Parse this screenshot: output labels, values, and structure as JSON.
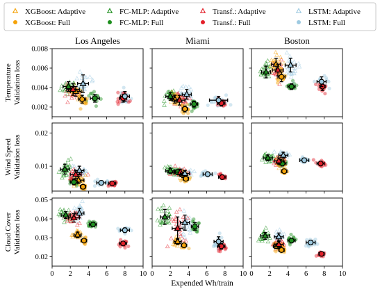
{
  "chart_data": {
    "type": "scatter",
    "xlabel": "Expended Wh/train",
    "xlim": [
      0,
      10
    ],
    "xticks": [
      "0",
      "2",
      "4",
      "6",
      "8",
      "10"
    ],
    "legend": {
      "position": "top",
      "entries": [
        {
          "name": "XGBoost: Adaptive",
          "marker": "triangle-open",
          "color": "#f5a30a"
        },
        {
          "name": "XGBoost: Full",
          "marker": "circle-filled",
          "color": "#f5a30a"
        },
        {
          "name": "FC-MLP: Adaptive",
          "marker": "triangle-open",
          "color": "#1e8f1e"
        },
        {
          "name": "FC-MLP: Full",
          "marker": "circle-filled",
          "color": "#1e8f1e"
        },
        {
          "name": "Transf.: Adaptive",
          "marker": "triangle-open",
          "color": "#e3202a"
        },
        {
          "name": "Transf.: Full",
          "marker": "circle-filled",
          "color": "#e3202a"
        },
        {
          "name": "LSTM: Adaptive",
          "marker": "triangle-open",
          "color": "#9ecae1"
        },
        {
          "name": "LSTM: Full",
          "marker": "circle-filled",
          "color": "#9ecae1"
        }
      ]
    },
    "columns": [
      "Los Angeles",
      "Miami",
      "Boston"
    ],
    "rows": [
      {
        "ylabel_lines": [
          "Temperature",
          "Validation loss"
        ],
        "ylim": [
          0.001,
          0.008
        ],
        "yticks": [
          "0.002",
          "0.004",
          "0.006",
          "0.008"
        ],
        "ytick_values": [
          0.002,
          0.004,
          0.006,
          0.008
        ]
      },
      {
        "ylabel_lines": [
          "Wind Speed",
          "Validation loss"
        ],
        "ylim": [
          0.0025,
          0.023
        ],
        "yticks": [
          "0.01",
          "0.02"
        ],
        "ytick_values": [
          0.01,
          0.02
        ]
      },
      {
        "ylabel_lines": [
          "Cloud Cover",
          "Validation loss"
        ],
        "ylim": [
          0.015,
          0.051
        ],
        "yticks": [
          "0.02",
          "0.03",
          "0.04",
          "0.05"
        ],
        "ytick_values": [
          0.02,
          0.03,
          0.04,
          0.05
        ]
      }
    ],
    "panels": [
      {
        "row": 0,
        "col": 0,
        "points": [
          {
            "model": "XGBoost",
            "mode": "Adaptive",
            "x": 2.6,
            "y": 0.0036,
            "xerr": 0.6,
            "yerr": 0.0005
          },
          {
            "model": "XGBoost",
            "mode": "Full",
            "x": 3.3,
            "y": 0.0028,
            "xerr": 0.4,
            "yerr": 0.0004
          },
          {
            "model": "FC-MLP",
            "mode": "Adaptive",
            "x": 1.8,
            "y": 0.0041,
            "xerr": 0.6,
            "yerr": 0.0005
          },
          {
            "model": "FC-MLP",
            "mode": "Full",
            "x": 4.7,
            "y": 0.0029,
            "xerr": 0.5,
            "yerr": 0.0004
          },
          {
            "model": "Transf.",
            "mode": "Adaptive",
            "x": 2.3,
            "y": 0.0038,
            "xerr": 0.7,
            "yerr": 0.0006
          },
          {
            "model": "Transf.",
            "mode": "Full",
            "x": 7.8,
            "y": 0.0029,
            "xerr": 0.4,
            "yerr": 0.0004
          },
          {
            "model": "LSTM",
            "mode": "Adaptive",
            "x": 3.4,
            "y": 0.0044,
            "xerr": 0.6,
            "yerr": 0.0009
          },
          {
            "model": "LSTM",
            "mode": "Full",
            "x": 8.0,
            "y": 0.0031,
            "xerr": 0.5,
            "yerr": 0.0005
          }
        ]
      },
      {
        "row": 0,
        "col": 1,
        "points": [
          {
            "model": "XGBoost",
            "mode": "Adaptive",
            "x": 2.5,
            "y": 0.0028,
            "xerr": 0.4,
            "yerr": 0.0004
          },
          {
            "model": "XGBoost",
            "mode": "Full",
            "x": 3.6,
            "y": 0.0018,
            "xerr": 0.3,
            "yerr": 0.0003
          },
          {
            "model": "FC-MLP",
            "mode": "Adaptive",
            "x": 2.0,
            "y": 0.0031,
            "xerr": 0.5,
            "yerr": 0.0004
          },
          {
            "model": "FC-MLP",
            "mode": "Full",
            "x": 4.6,
            "y": 0.0023,
            "xerr": 0.4,
            "yerr": 0.0003
          },
          {
            "model": "Transf.",
            "mode": "Adaptive",
            "x": 3.0,
            "y": 0.0027,
            "xerr": 0.6,
            "yerr": 0.0005
          },
          {
            "model": "Transf.",
            "mode": "Full",
            "x": 7.6,
            "y": 0.0024,
            "xerr": 0.4,
            "yerr": 0.0003
          },
          {
            "model": "LSTM",
            "mode": "Adaptive",
            "x": 3.8,
            "y": 0.0033,
            "xerr": 0.5,
            "yerr": 0.0005
          },
          {
            "model": "LSTM",
            "mode": "Full",
            "x": 7.3,
            "y": 0.0027,
            "xerr": 1.0,
            "yerr": 0.0004
          }
        ]
      },
      {
        "row": 0,
        "col": 2,
        "points": [
          {
            "model": "XGBoost",
            "mode": "Adaptive",
            "x": 2.7,
            "y": 0.0064,
            "xerr": 0.5,
            "yerr": 0.0006
          },
          {
            "model": "XGBoost",
            "mode": "Full",
            "x": 3.3,
            "y": 0.0051,
            "xerr": 0.4,
            "yerr": 0.0005
          },
          {
            "model": "FC-MLP",
            "mode": "Adaptive",
            "x": 1.6,
            "y": 0.0056,
            "xerr": 0.5,
            "yerr": 0.0006
          },
          {
            "model": "FC-MLP",
            "mode": "Full",
            "x": 4.4,
            "y": 0.0041,
            "xerr": 0.4,
            "yerr": 0.0003
          },
          {
            "model": "Transf.",
            "mode": "Adaptive",
            "x": 2.9,
            "y": 0.0058,
            "xerr": 0.6,
            "yerr": 0.0006
          },
          {
            "model": "Transf.",
            "mode": "Full",
            "x": 7.8,
            "y": 0.0041,
            "xerr": 0.3,
            "yerr": 0.0004
          },
          {
            "model": "LSTM",
            "mode": "Adaptive",
            "x": 4.3,
            "y": 0.0063,
            "xerr": 0.6,
            "yerr": 0.0007
          },
          {
            "model": "LSTM",
            "mode": "Full",
            "x": 7.7,
            "y": 0.0046,
            "xerr": 0.5,
            "yerr": 0.0005
          }
        ]
      },
      {
        "row": 1,
        "col": 0,
        "points": [
          {
            "model": "XGBoost",
            "mode": "Adaptive",
            "x": 2.9,
            "y": 0.0058,
            "xerr": 0.6,
            "yerr": 0.001
          },
          {
            "model": "XGBoost",
            "mode": "Full",
            "x": 3.4,
            "y": 0.0038,
            "xerr": 0.3,
            "yerr": 0.0006
          },
          {
            "model": "FC-MLP",
            "mode": "Adaptive",
            "x": 1.4,
            "y": 0.0091,
            "xerr": 0.5,
            "yerr": 0.0015
          },
          {
            "model": "FC-MLP",
            "mode": "Full",
            "x": 2.4,
            "y": 0.0052,
            "xerr": 0.4,
            "yerr": 0.0008
          },
          {
            "model": "Transf.",
            "mode": "Adaptive",
            "x": 2.6,
            "y": 0.0075,
            "xerr": 0.6,
            "yerr": 0.0012
          },
          {
            "model": "Transf.",
            "mode": "Full",
            "x": 6.6,
            "y": 0.0048,
            "xerr": 0.4,
            "yerr": 0.0005
          },
          {
            "model": "LSTM",
            "mode": "Adaptive",
            "x": 3.0,
            "y": 0.0087,
            "xerr": 0.5,
            "yerr": 0.0013
          },
          {
            "model": "LSTM",
            "mode": "Full",
            "x": 5.4,
            "y": 0.005,
            "xerr": 0.5,
            "yerr": 0.0006
          }
        ]
      },
      {
        "row": 1,
        "col": 1,
        "points": [
          {
            "model": "XGBoost",
            "mode": "Adaptive",
            "x": 3.4,
            "y": 0.0074,
            "xerr": 0.4,
            "yerr": 0.0008
          },
          {
            "model": "XGBoost",
            "mode": "Full",
            "x": 3.7,
            "y": 0.0062,
            "xerr": 0.3,
            "yerr": 0.0006
          },
          {
            "model": "FC-MLP",
            "mode": "Adaptive",
            "x": 2.0,
            "y": 0.0086,
            "xerr": 0.5,
            "yerr": 0.0008
          },
          {
            "model": "FC-MLP",
            "mode": "Full",
            "x": 2.8,
            "y": 0.0082,
            "xerr": 0.4,
            "yerr": 0.0007
          },
          {
            "model": "Transf.",
            "mode": "Adaptive",
            "x": 3.1,
            "y": 0.0082,
            "xerr": 0.6,
            "yerr": 0.0009
          },
          {
            "model": "Transf.",
            "mode": "Full",
            "x": 7.7,
            "y": 0.0067,
            "xerr": 0.4,
            "yerr": 0.0006
          },
          {
            "model": "LSTM",
            "mode": "Adaptive",
            "x": 3.6,
            "y": 0.0078,
            "xerr": 0.5,
            "yerr": 0.0009
          },
          {
            "model": "LSTM",
            "mode": "Full",
            "x": 6.1,
            "y": 0.0076,
            "xerr": 0.5,
            "yerr": 0.0006
          }
        ]
      },
      {
        "row": 1,
        "col": 2,
        "points": [
          {
            "model": "XGBoost",
            "mode": "Adaptive",
            "x": 3.2,
            "y": 0.0112,
            "xerr": 0.4,
            "yerr": 0.0008
          },
          {
            "model": "XGBoost",
            "mode": "Full",
            "x": 3.6,
            "y": 0.0085,
            "xerr": 0.3,
            "yerr": 0.0005
          },
          {
            "model": "FC-MLP",
            "mode": "Adaptive",
            "x": 1.8,
            "y": 0.0125,
            "xerr": 0.5,
            "yerr": 0.0009
          },
          {
            "model": "FC-MLP",
            "mode": "Full",
            "x": 3.4,
            "y": 0.0108,
            "xerr": 0.4,
            "yerr": 0.0007
          },
          {
            "model": "Transf.",
            "mode": "Adaptive",
            "x": 3.0,
            "y": 0.0116,
            "xerr": 0.5,
            "yerr": 0.0009
          },
          {
            "model": "Transf.",
            "mode": "Full",
            "x": 7.6,
            "y": 0.0108,
            "xerr": 0.4,
            "yerr": 0.0006
          },
          {
            "model": "LSTM",
            "mode": "Adaptive",
            "x": 3.5,
            "y": 0.0133,
            "xerr": 0.5,
            "yerr": 0.0009
          },
          {
            "model": "LSTM",
            "mode": "Full",
            "x": 5.8,
            "y": 0.0118,
            "xerr": 0.5,
            "yerr": 0.0006
          }
        ]
      },
      {
        "row": 2,
        "col": 0,
        "points": [
          {
            "model": "XGBoost",
            "mode": "Adaptive",
            "x": 2.8,
            "y": 0.0315,
            "xerr": 0.4,
            "yerr": 0.0015
          },
          {
            "model": "XGBoost",
            "mode": "Full",
            "x": 3.5,
            "y": 0.0285,
            "xerr": 0.3,
            "yerr": 0.001
          },
          {
            "model": "FC-MLP",
            "mode": "Adaptive",
            "x": 1.5,
            "y": 0.042,
            "xerr": 0.5,
            "yerr": 0.0018
          },
          {
            "model": "FC-MLP",
            "mode": "Full",
            "x": 4.5,
            "y": 0.037,
            "xerr": 0.4,
            "yerr": 0.0012
          },
          {
            "model": "Transf.",
            "mode": "Adaptive",
            "x": 2.4,
            "y": 0.0405,
            "xerr": 0.6,
            "yerr": 0.0022
          },
          {
            "model": "Transf.",
            "mode": "Full",
            "x": 7.8,
            "y": 0.027,
            "xerr": 0.4,
            "yerr": 0.001
          },
          {
            "model": "LSTM",
            "mode": "Adaptive",
            "x": 3.0,
            "y": 0.043,
            "xerr": 0.5,
            "yerr": 0.0025
          },
          {
            "model": "LSTM",
            "mode": "Full",
            "x": 8.0,
            "y": 0.034,
            "xerr": 0.5,
            "yerr": 0.0012
          }
        ]
      },
      {
        "row": 2,
        "col": 1,
        "points": [
          {
            "model": "XGBoost",
            "mode": "Adaptive",
            "x": 2.8,
            "y": 0.028,
            "xerr": 0.4,
            "yerr": 0.0015
          },
          {
            "model": "XGBoost",
            "mode": "Full",
            "x": 3.5,
            "y": 0.026,
            "xerr": 0.3,
            "yerr": 0.001
          },
          {
            "model": "FC-MLP",
            "mode": "Adaptive",
            "x": 1.4,
            "y": 0.041,
            "xerr": 0.5,
            "yerr": 0.004
          },
          {
            "model": "FC-MLP",
            "mode": "Full",
            "x": 4.7,
            "y": 0.036,
            "xerr": 0.4,
            "yerr": 0.002
          },
          {
            "model": "Transf.",
            "mode": "Adaptive",
            "x": 2.8,
            "y": 0.035,
            "xerr": 0.6,
            "yerr": 0.006
          },
          {
            "model": "Transf.",
            "mode": "Full",
            "x": 7.6,
            "y": 0.0255,
            "xerr": 0.4,
            "yerr": 0.0015
          },
          {
            "model": "LSTM",
            "mode": "Adaptive",
            "x": 3.6,
            "y": 0.038,
            "xerr": 0.5,
            "yerr": 0.004
          },
          {
            "model": "LSTM",
            "mode": "Full",
            "x": 7.3,
            "y": 0.028,
            "xerr": 0.5,
            "yerr": 0.0025
          }
        ]
      },
      {
        "row": 2,
        "col": 2,
        "points": [
          {
            "model": "XGBoost",
            "mode": "Adaptive",
            "x": 2.8,
            "y": 0.0255,
            "xerr": 0.4,
            "yerr": 0.0012
          },
          {
            "model": "XGBoost",
            "mode": "Full",
            "x": 3.3,
            "y": 0.0235,
            "xerr": 0.3,
            "yerr": 0.001
          },
          {
            "model": "FC-MLP",
            "mode": "Adaptive",
            "x": 1.5,
            "y": 0.031,
            "xerr": 0.5,
            "yerr": 0.0018
          },
          {
            "model": "FC-MLP",
            "mode": "Full",
            "x": 4.4,
            "y": 0.0285,
            "xerr": 0.4,
            "yerr": 0.0012
          },
          {
            "model": "Transf.",
            "mode": "Adaptive",
            "x": 3.0,
            "y": 0.0265,
            "xerr": 0.5,
            "yerr": 0.0015
          },
          {
            "model": "Transf.",
            "mode": "Full",
            "x": 7.7,
            "y": 0.0215,
            "xerr": 0.3,
            "yerr": 0.001
          },
          {
            "model": "LSTM",
            "mode": "Adaptive",
            "x": 3.0,
            "y": 0.0305,
            "xerr": 0.5,
            "yerr": 0.002
          },
          {
            "model": "LSTM",
            "mode": "Full",
            "x": 6.5,
            "y": 0.0275,
            "xerr": 0.5,
            "yerr": 0.0012
          }
        ]
      }
    ]
  }
}
